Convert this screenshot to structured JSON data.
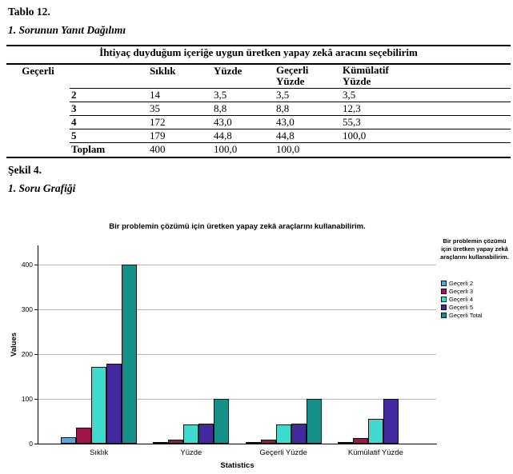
{
  "document": {
    "table_label": "Tablo 12.",
    "table_caption": "1. Sorunun Yanıt Dağılımı",
    "figure_label": "Şekil 4.",
    "figure_caption": "1. Soru Grafiği"
  },
  "table": {
    "title": "İhtiyaç duyduğum içeriğe uygun üretken yapay zekâ aracını seçebilirim",
    "row_group_label": "Geçerli",
    "columns": [
      "Sıklık",
      "Yüzde",
      "Geçerli Yüzde",
      "Kümülatif Yüzde"
    ],
    "rows": [
      {
        "label": "2",
        "values": [
          "14",
          "3,5",
          "3,5",
          "3,5"
        ]
      },
      {
        "label": "3",
        "values": [
          "35",
          "8,8",
          "8,8",
          "12,3"
        ]
      },
      {
        "label": "4",
        "values": [
          "172",
          "43,0",
          "43,0",
          "55,3"
        ]
      },
      {
        "label": "5",
        "values": [
          "179",
          "44,8",
          "44,8",
          "100,0"
        ]
      },
      {
        "label": "Toplam",
        "values": [
          "400",
          "100,0",
          "100,0",
          ""
        ]
      }
    ]
  },
  "chart_data": {
    "type": "bar",
    "title": "Bir problemin çözümü için üretken yapay zekâ araçlarını kullanabilirim.",
    "xlabel": "Statistics",
    "ylabel": "Values",
    "categories": [
      "Sıklık",
      "Yüzde",
      "Geçerli Yüzde",
      "Kümülatif Yüzde"
    ],
    "series": [
      {
        "name": "Geçerli 2",
        "color": "#58a8e0",
        "values": [
          14,
          3.5,
          3.5,
          3.5
        ]
      },
      {
        "name": "Geçerli 3",
        "color": "#a0154a",
        "values": [
          35,
          8.8,
          8.8,
          12.3
        ]
      },
      {
        "name": "Geçerli 4",
        "color": "#40d9ce",
        "values": [
          172,
          43.0,
          43.0,
          55.3
        ]
      },
      {
        "name": "Geçerli 5",
        "color": "#4329a0",
        "values": [
          179,
          44.8,
          44.8,
          100.0
        ]
      },
      {
        "name": "Geçerli Total",
        "color": "#149089",
        "values": [
          400,
          100.0,
          100.0,
          null
        ]
      }
    ],
    "ylim": [
      0,
      443
    ],
    "yticks": [
      0,
      100,
      200,
      300,
      400
    ],
    "grid": true,
    "legend_position": "right",
    "legend_title": "Bir problemin çözümü için üretken yapay zekâ araçlarını kullanabilirim.",
    "grid_color": "#b3b3b3"
  }
}
